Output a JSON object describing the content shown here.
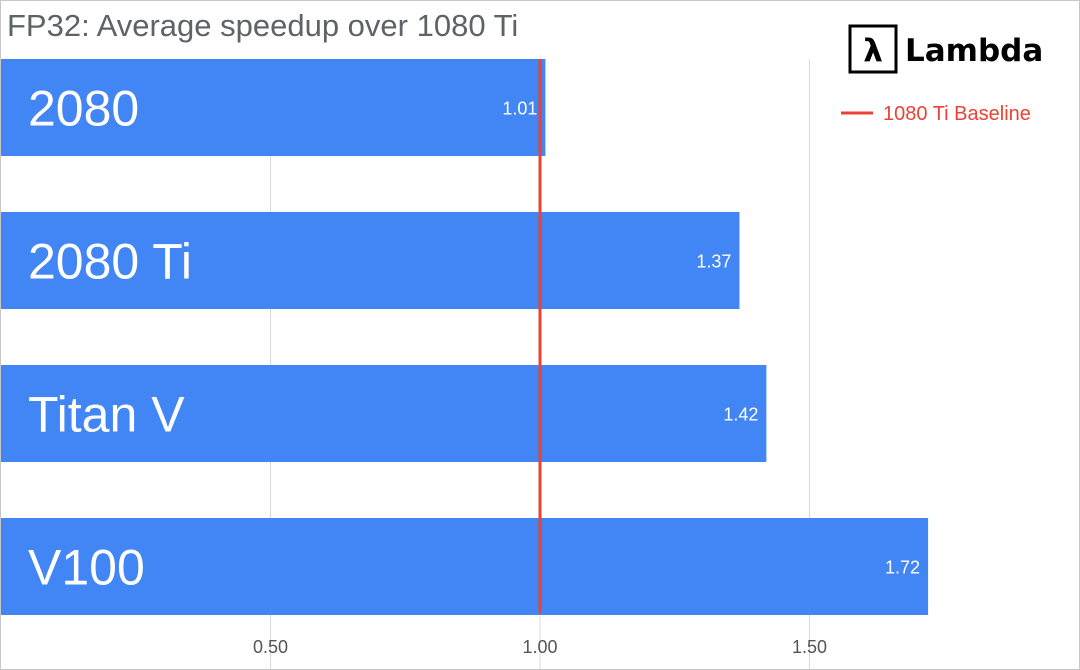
{
  "chart_data": {
    "type": "bar",
    "orientation": "horizontal",
    "title": "FP32: Average speedup over 1080 Ti",
    "categories": [
      "2080",
      "2080 Ti",
      "Titan V",
      "V100"
    ],
    "values": [
      1.01,
      1.37,
      1.42,
      1.72
    ],
    "value_labels": [
      "1.01",
      "1.37",
      "1.42",
      "1.72"
    ],
    "xlim": [
      0,
      2.0
    ],
    "x_ticks": [
      0.5,
      1.0,
      1.5
    ],
    "x_tick_labels": [
      "0.50",
      "1.00",
      "1.50"
    ],
    "grid": true,
    "baseline": {
      "value": 1.0,
      "label": "1080 Ti Baseline",
      "color": "#ea4335"
    },
    "bar_color": "#4285f4",
    "legend_position": "top-right"
  },
  "logo": {
    "glyph": "λ",
    "text": "Lambda"
  }
}
